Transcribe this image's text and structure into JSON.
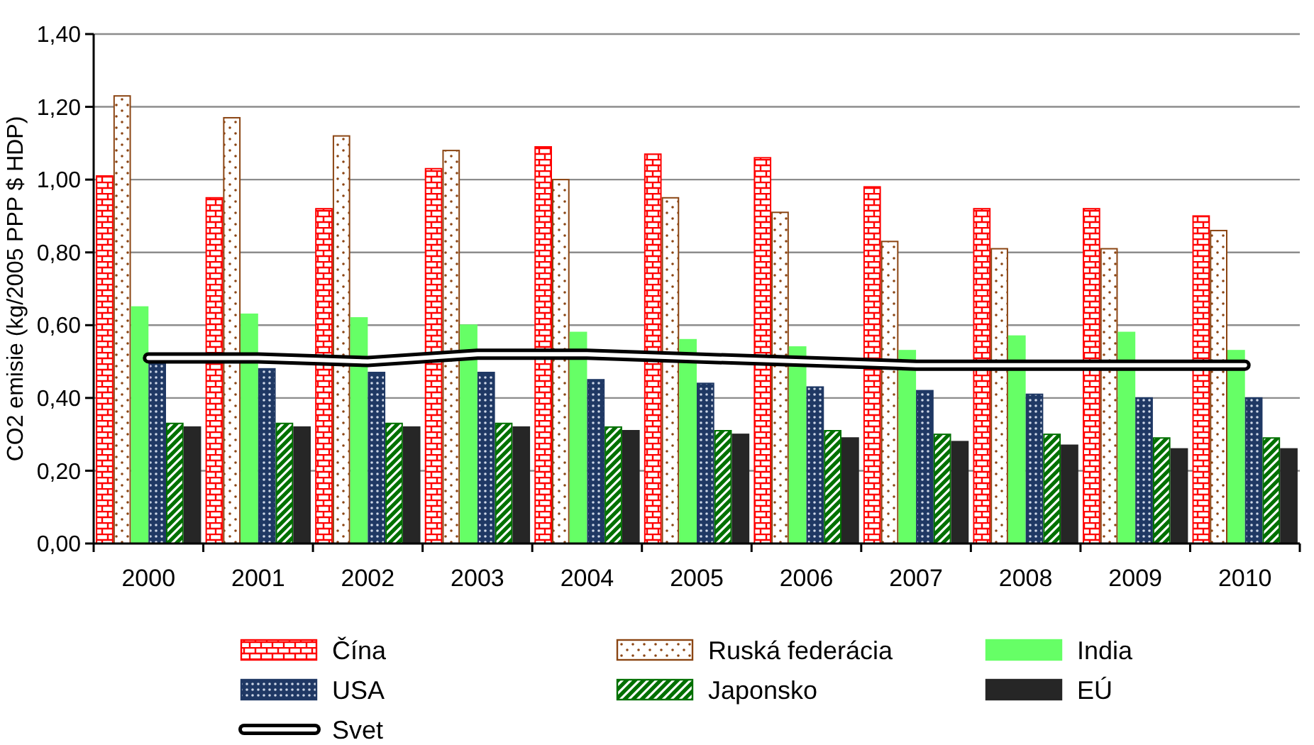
{
  "chart_data": {
    "type": "bar",
    "ylabel": "CO2 emisie (kg/2005 PPP $ HDP)",
    "categories": [
      "2000",
      "2001",
      "2002",
      "2003",
      "2004",
      "2005",
      "2006",
      "2007",
      "2008",
      "2009",
      "2010"
    ],
    "ylim": [
      0,
      1.4
    ],
    "yticks": [
      {
        "value": 0,
        "label": "0,00"
      },
      {
        "value": 0.2,
        "label": "0,20"
      },
      {
        "value": 0.4,
        "label": "0,40"
      },
      {
        "value": 0.6,
        "label": "0,60"
      },
      {
        "value": 0.8,
        "label": "0,80"
      },
      {
        "value": 1,
        "label": "1,00"
      },
      {
        "value": 1.2,
        "label": "1,20"
      },
      {
        "value": 1.4,
        "label": "1,40"
      }
    ],
    "grid": "y",
    "legend": "bottom",
    "series": [
      {
        "name": "Čína",
        "color": "#ff0000",
        "values": [
          1.01,
          0.95,
          0.92,
          1.03,
          1.09,
          1.07,
          1.06,
          0.98,
          0.92,
          0.92,
          0.9
        ]
      },
      {
        "name": "Ruská federácia",
        "color": "#8b4513",
        "values": [
          1.23,
          1.17,
          1.12,
          1.08,
          1.0,
          0.95,
          0.91,
          0.83,
          0.81,
          0.81,
          0.86
        ]
      },
      {
        "name": "India",
        "color": "#66ff66",
        "values": [
          0.65,
          0.63,
          0.62,
          0.6,
          0.58,
          0.56,
          0.54,
          0.53,
          0.57,
          0.58,
          0.53
        ]
      },
      {
        "name": "USA",
        "color": "#1f3864",
        "values": [
          0.5,
          0.48,
          0.47,
          0.47,
          0.45,
          0.44,
          0.43,
          0.42,
          0.41,
          0.4,
          0.4
        ]
      },
      {
        "name": "Japonsko",
        "color": "#007000",
        "values": [
          0.33,
          0.33,
          0.33,
          0.33,
          0.32,
          0.31,
          0.31,
          0.3,
          0.3,
          0.29,
          0.29
        ]
      },
      {
        "name": "EÚ",
        "color": "#262626",
        "values": [
          0.32,
          0.32,
          0.32,
          0.32,
          0.31,
          0.3,
          0.29,
          0.28,
          0.27,
          0.26,
          0.26
        ]
      },
      {
        "name": "Svet",
        "type": "line",
        "color": "#000000",
        "values": [
          0.51,
          0.51,
          0.5,
          0.52,
          0.52,
          0.51,
          0.5,
          0.49,
          0.49,
          0.49,
          0.49
        ]
      }
    ]
  }
}
